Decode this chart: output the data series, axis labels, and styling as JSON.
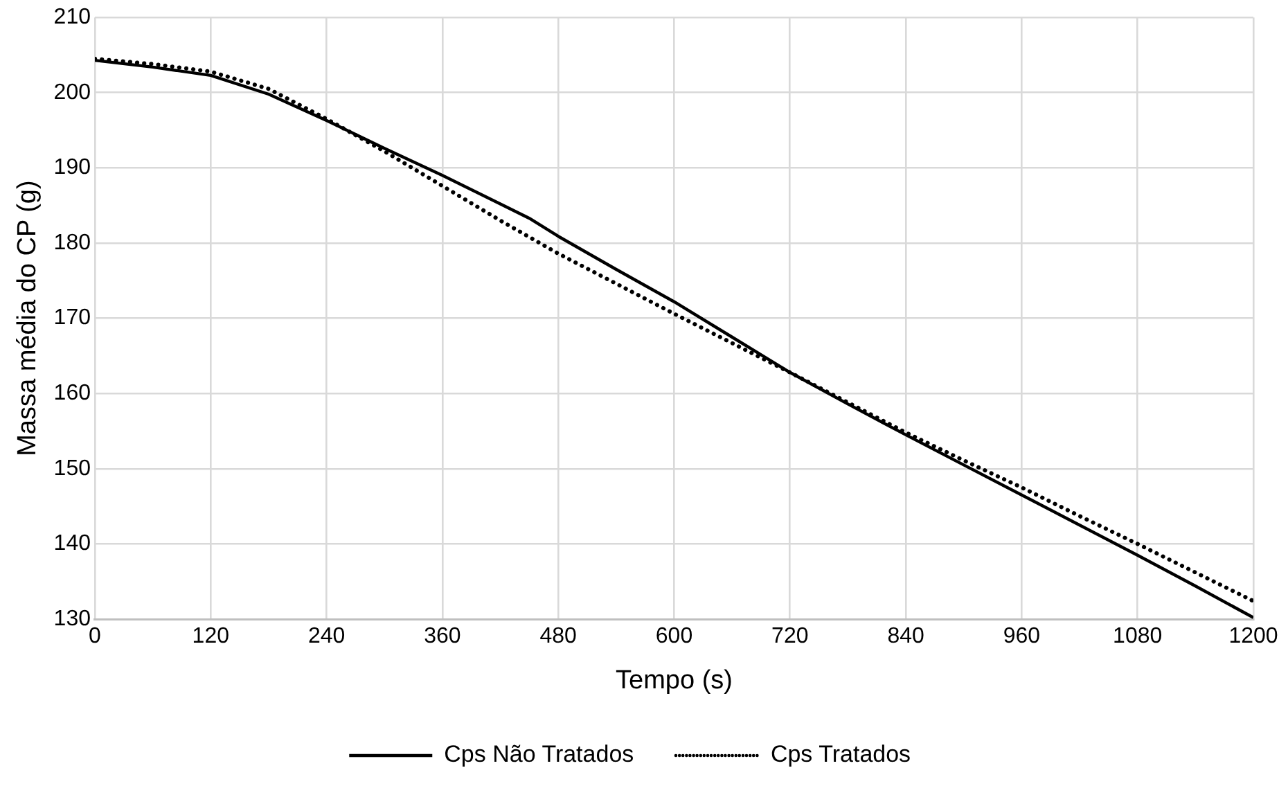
{
  "chart_data": {
    "type": "line",
    "xlabel": "Tempo (s)",
    "ylabel": "Massa média do CP (g)",
    "x": [
      0,
      60,
      120,
      180,
      240,
      300,
      360,
      420,
      450,
      480,
      540,
      600,
      660,
      720,
      780,
      840,
      900,
      960,
      1020,
      1080,
      1140,
      1200
    ],
    "series": [
      {
        "name": "Cps Não Tratados",
        "color": "#000000",
        "line_style": "solid",
        "values": [
          204.3,
          203.4,
          202.3,
          199.8,
          196.3,
          192.6,
          189,
          185.2,
          183.3,
          180.9,
          176.5,
          172.2,
          167.5,
          162.8,
          158.6,
          154.5,
          150.5,
          146.5,
          142.5,
          138.5,
          134.4,
          130.2
        ]
      },
      {
        "name": "Cps Tratados",
        "color": "#000000",
        "line_style": "dotted",
        "values": [
          204.5,
          203.8,
          202.8,
          200.5,
          196.5,
          192.2,
          187.6,
          183,
          180.8,
          178.6,
          174.6,
          170.6,
          166.7,
          162.8,
          158.8,
          154.8,
          151.1,
          147.5,
          143.7,
          140,
          136.2,
          132.4
        ]
      }
    ],
    "xlim": [
      0,
      1200
    ],
    "xticks": [
      0,
      120,
      240,
      360,
      480,
      600,
      720,
      840,
      960,
      1080,
      1200
    ],
    "ylim": [
      130,
      210
    ],
    "yticks": [
      130,
      140,
      150,
      160,
      170,
      180,
      190,
      200,
      210
    ],
    "grid": true,
    "legend": "bottom",
    "marker": "none"
  }
}
